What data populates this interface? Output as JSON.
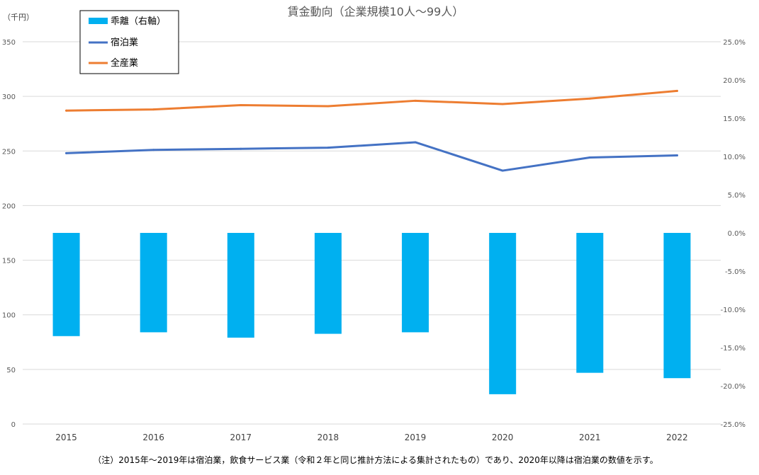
{
  "chart_data": {
    "type": "bar+line",
    "title": "賃金動向（企業規模10人～99人）",
    "unit_left": "（千円）",
    "categories": [
      "2015",
      "2016",
      "2017",
      "2018",
      "2019",
      "2020",
      "2021",
      "2022"
    ],
    "y_left": {
      "min": 0,
      "max": 350,
      "step": 50,
      "ticks": [
        "0",
        "50",
        "100",
        "150",
        "200",
        "250",
        "300",
        "350"
      ]
    },
    "y_right": {
      "min": -25,
      "max": 25,
      "step": 5,
      "ticks": [
        "-25.0%",
        "-20.0%",
        "-15.0%",
        "-10.0%",
        "-5.0%",
        "0.0%",
        "5.0%",
        "10.0%",
        "15.0%",
        "20.0%",
        "25.0%"
      ]
    },
    "grid": true,
    "legend_position": "top-left",
    "series": [
      {
        "name": "乖離（右軸）",
        "type": "bar",
        "axis": "right",
        "color": "#00b0f0",
        "values": [
          -13.5,
          -13.0,
          -13.7,
          -13.2,
          -13.0,
          -21.1,
          -18.3,
          -19.0
        ]
      },
      {
        "name": "宿泊業",
        "type": "line",
        "axis": "left",
        "color": "#4472c4",
        "values": [
          248,
          251,
          252,
          253,
          258,
          232,
          244,
          246
        ]
      },
      {
        "name": "全産業",
        "type": "line",
        "axis": "left",
        "color": "#ed7d31",
        "values": [
          287,
          288,
          292,
          291,
          296,
          293,
          298,
          305
        ]
      }
    ],
    "note": "（注）2015年～2019年は宿泊業，飲食サービス業（令和２年と同じ推計方法による集計されたもの）であり、2020年以降は宿泊業の数値を示す。"
  }
}
